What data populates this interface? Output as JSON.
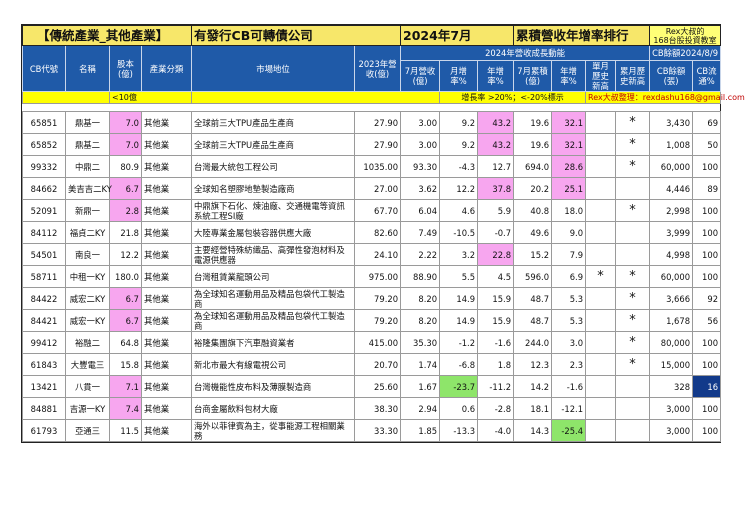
{
  "title": {
    "category": "【傳統產業_其他產業】",
    "subject": "有發行CB可轉債公司",
    "period": "2024年7月",
    "ranking": "累積營收年增率排行",
    "brand_line1": "Rex大叔的",
    "brand_line2": "168台股投資教室"
  },
  "headers": {
    "code": "CB代號",
    "name": "名稱",
    "capital": "股本(億)",
    "industry": "產業分類",
    "position": "市場地位",
    "rev2023": "2023年營收(億)",
    "growth_group": "2024年營收成長動能",
    "cb_group": "CB餘額2024/8/9",
    "jul_rev": "7月營收(億)",
    "mom": "月增率%",
    "yoy": "年增率%",
    "jul_cum": "7月累積(億)",
    "cum_yoy": "年增率%",
    "month_high": "單月歷史新高",
    "cum_high": "累月歷史新高",
    "cb_balance": "CB餘額(張)",
    "cb_ratio": "CB流通%"
  },
  "notes": {
    "capital": "<10億",
    "growth": "增長率 >20%；<-20%標示",
    "credit": "Rex大叔整理：rexdashu168@gmail.com"
  },
  "colors": {
    "header_bg": "#1f5aa8",
    "title_bg": "#f7e76a",
    "highlight_pink": "#f7a6ef",
    "highlight_green": "#8ee56a",
    "highlight_navy": "#123a8a"
  },
  "rows": [
    {
      "code": "65851",
      "name": "鼎基一",
      "capital": "7.0",
      "ind": "其他業",
      "pos": "全球前三大TPU產品生產商",
      "rev": "27.90",
      "m": "3.00",
      "mom": "9.2",
      "yoy": "43.2",
      "cum": "19.6",
      "cyoy": "32.1",
      "mh": "",
      "ch": "*",
      "cb": "3,430",
      "ratio": "69",
      "hl": {
        "capital": "pk",
        "yoy": "pk",
        "cyoy": "pk"
      }
    },
    {
      "code": "65852",
      "name": "鼎基二",
      "capital": "7.0",
      "ind": "其他業",
      "pos": "全球前三大TPU產品生產商",
      "rev": "27.90",
      "m": "3.00",
      "mom": "9.2",
      "yoy": "43.2",
      "cum": "19.6",
      "cyoy": "32.1",
      "mh": "",
      "ch": "*",
      "cb": "1,008",
      "ratio": "50",
      "hl": {
        "capital": "pk",
        "yoy": "pk",
        "cyoy": "pk"
      }
    },
    {
      "code": "99332",
      "name": "中鼎二",
      "capital": "80.9",
      "ind": "其他業",
      "pos": "台灣最大統包工程公司",
      "rev": "1035.00",
      "m": "93.30",
      "mom": "-4.3",
      "yoy": "12.7",
      "cum": "694.0",
      "cyoy": "28.6",
      "mh": "",
      "ch": "*",
      "cb": "60,000",
      "ratio": "100",
      "hl": {
        "cyoy": "pk"
      }
    },
    {
      "code": "84662",
      "name": "美吉吉二KY",
      "capital": "6.7",
      "ind": "其他業",
      "pos": "全球知名塑膠地墊製造廠商",
      "rev": "27.00",
      "m": "3.62",
      "mom": "12.2",
      "yoy": "37.8",
      "cum": "20.2",
      "cyoy": "25.1",
      "mh": "",
      "ch": "",
      "cb": "4,446",
      "ratio": "89",
      "hl": {
        "capital": "pk",
        "yoy": "pk",
        "cyoy": "pk"
      }
    },
    {
      "code": "52091",
      "name": "新鼎一",
      "capital": "2.8",
      "ind": "其他業",
      "pos": "中鼎旗下石化、煉油廠、交通機電等資訊系統工程SI廠",
      "rev": "67.70",
      "m": "6.04",
      "mom": "4.6",
      "yoy": "5.9",
      "cum": "40.8",
      "cyoy": "18.0",
      "mh": "",
      "ch": "*",
      "cb": "2,998",
      "ratio": "100",
      "hl": {
        "capital": "pk"
      }
    },
    {
      "code": "84112",
      "name": "福貞二KY",
      "capital": "21.8",
      "ind": "其他業",
      "pos": "大陸專業金屬包裝容器供應大廠",
      "rev": "82.60",
      "m": "7.49",
      "mom": "-10.5",
      "yoy": "-0.7",
      "cum": "49.6",
      "cyoy": "9.0",
      "mh": "",
      "ch": "",
      "cb": "3,999",
      "ratio": "100",
      "hl": {}
    },
    {
      "code": "54501",
      "name": "南良一",
      "capital": "12.2",
      "ind": "其他業",
      "pos": "主要經營特殊紡織品、高彈性發泡材料及電源供應器",
      "rev": "24.10",
      "m": "2.22",
      "mom": "3.2",
      "yoy": "22.8",
      "cum": "15.2",
      "cyoy": "7.9",
      "mh": "",
      "ch": "",
      "cb": "4,998",
      "ratio": "100",
      "hl": {
        "yoy": "pk"
      }
    },
    {
      "code": "58711",
      "name": "中租一KY",
      "capital": "180.0",
      "ind": "其他業",
      "pos": "台灣租賃業龍頭公司",
      "rev": "975.00",
      "m": "88.90",
      "mom": "5.5",
      "yoy": "4.5",
      "cum": "596.0",
      "cyoy": "6.9",
      "mh": "*",
      "ch": "*",
      "cb": "60,000",
      "ratio": "100",
      "hl": {}
    },
    {
      "code": "84422",
      "name": "威宏二KY",
      "capital": "6.7",
      "ind": "其他業",
      "pos": "為全球知名運動用品及精品包袋代工製造商",
      "rev": "79.20",
      "m": "8.20",
      "mom": "14.9",
      "yoy": "15.9",
      "cum": "48.7",
      "cyoy": "5.3",
      "mh": "",
      "ch": "*",
      "cb": "3,666",
      "ratio": "92",
      "hl": {
        "capital": "pk"
      }
    },
    {
      "code": "84421",
      "name": "威宏一KY",
      "capital": "6.7",
      "ind": "其他業",
      "pos": "為全球知名運動用品及精品包袋代工製造商",
      "rev": "79.20",
      "m": "8.20",
      "mom": "14.9",
      "yoy": "15.9",
      "cum": "48.7",
      "cyoy": "5.3",
      "mh": "",
      "ch": "*",
      "cb": "1,678",
      "ratio": "56",
      "hl": {
        "capital": "pk"
      }
    },
    {
      "code": "99412",
      "name": "裕融二",
      "capital": "64.8",
      "ind": "其他業",
      "pos": "裕隆集團旗下汽車融資業者",
      "rev": "415.00",
      "m": "35.30",
      "mom": "-1.2",
      "yoy": "-1.6",
      "cum": "244.0",
      "cyoy": "3.0",
      "mh": "",
      "ch": "*",
      "cb": "80,000",
      "ratio": "100",
      "hl": {}
    },
    {
      "code": "61843",
      "name": "大豐電三",
      "capital": "15.8",
      "ind": "其他業",
      "pos": "新北市最大有線電視公司",
      "rev": "20.70",
      "m": "1.74",
      "mom": "-6.8",
      "yoy": "1.8",
      "cum": "12.3",
      "cyoy": "2.3",
      "mh": "",
      "ch": "*",
      "cb": "15,000",
      "ratio": "100",
      "hl": {}
    },
    {
      "code": "13421",
      "name": "八貫一",
      "capital": "7.1",
      "ind": "其他業",
      "pos": "台灣機能性皮布料及薄膜製造商",
      "rev": "25.60",
      "m": "1.67",
      "mom": "-23.7",
      "yoy": "-11.2",
      "cum": "14.2",
      "cyoy": "-1.6",
      "mh": "",
      "ch": "",
      "cb": "328",
      "ratio": "16",
      "hl": {
        "capital": "pk",
        "mom": "gn",
        "ratio": "nv"
      }
    },
    {
      "code": "84881",
      "name": "吉源一KY",
      "capital": "7.4",
      "ind": "其他業",
      "pos": "台商金屬飲料包材大廠",
      "rev": "38.30",
      "m": "2.94",
      "mom": "0.6",
      "yoy": "-2.8",
      "cum": "18.1",
      "cyoy": "-12.1",
      "mh": "",
      "ch": "",
      "cb": "3,000",
      "ratio": "100",
      "hl": {
        "capital": "pk"
      }
    },
    {
      "code": "61793",
      "name": "亞通三",
      "capital": "11.5",
      "ind": "其他業",
      "pos": "海外以菲律賓為主，從事能源工程相關業務",
      "rev": "33.30",
      "m": "1.85",
      "mom": "-13.3",
      "yoy": "-4.0",
      "cum": "14.3",
      "cyoy": "-25.4",
      "mh": "",
      "ch": "",
      "cb": "3,000",
      "ratio": "100",
      "hl": {
        "cyoy": "gn"
      }
    }
  ]
}
